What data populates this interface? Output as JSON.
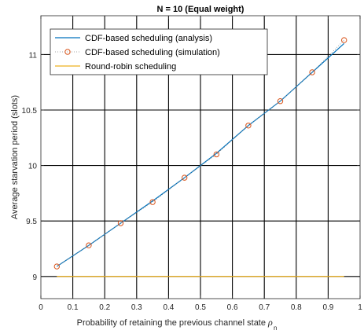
{
  "chart_data": {
    "type": "line",
    "title": "N = 10 (Equal weight)",
    "xlabel": "Probability of retaining the previous channel state",
    "xlabel_symbol": "ρ",
    "xlabel_subscript": "n",
    "ylabel": "Average starvation period (slots)",
    "xlim": [
      0,
      1
    ],
    "ylim": [
      8.8,
      11.35
    ],
    "xticks": [
      "0",
      "0.1",
      "0.2",
      "0.3",
      "0.4",
      "0.5",
      "0.6",
      "0.7",
      "0.8",
      "0.9",
      "1"
    ],
    "yticks": [
      "9",
      "9.5",
      "10",
      "10.5",
      "11"
    ],
    "grid": true,
    "legend_position": "top-left",
    "series": [
      {
        "name": "CDF-based scheduling (analysis)",
        "style": "line",
        "color": "#0072BD",
        "x": [
          0.05,
          0.15,
          0.25,
          0.35,
          0.45,
          0.55,
          0.65,
          0.75,
          0.85,
          0.95
        ],
        "y": [
          9.09,
          9.28,
          9.48,
          9.68,
          9.89,
          10.11,
          10.36,
          10.58,
          10.84,
          11.1
        ]
      },
      {
        "name": "CDF-based scheduling (simulation)",
        "style": "markers",
        "color": "#D95319",
        "x": [
          0.05,
          0.15,
          0.25,
          0.35,
          0.45,
          0.55,
          0.65,
          0.75,
          0.85,
          0.95
        ],
        "y": [
          9.09,
          9.28,
          9.48,
          9.67,
          9.89,
          10.1,
          10.36,
          10.58,
          10.84,
          11.13
        ]
      },
      {
        "name": "Round-robin scheduling",
        "style": "line",
        "color": "#EDB120",
        "x": [
          0.05,
          0.95
        ],
        "y": [
          9.0,
          9.0
        ]
      }
    ]
  }
}
